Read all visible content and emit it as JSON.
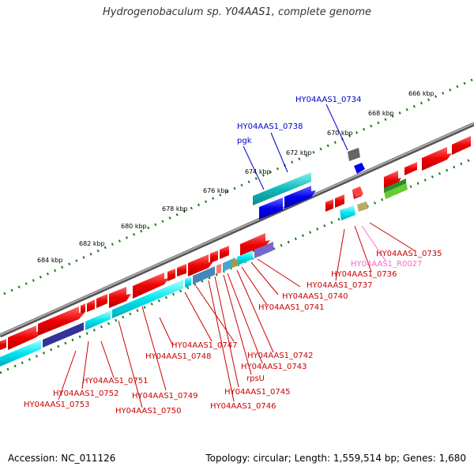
{
  "title": "Hydrogenobaculum sp. Y04AAS1, complete genome",
  "footer": {
    "accession": "Accession: NC_011126",
    "summary": "Topology: circular; Length: 1,559,514 bp; Genes: 1,680"
  },
  "scale_labels": [
    "666 kbp",
    "668 kbp",
    "670 kbp",
    "672 kbp",
    "674 kbp",
    "676 kbp",
    "678 kbp",
    "680 kbp",
    "682 kbp",
    "684 kbp"
  ],
  "upper_labels": [
    "HY04AAS1_0734",
    "HY04AAS1_0738",
    "pgk"
  ],
  "lower_labels": [
    "HY04AAS1_0735",
    "HY04AAS1_R0027",
    "HY04AAS1_0736",
    "HY04AAS1_0737",
    "HY04AAS1_0740",
    "HY04AAS1_0741",
    "HY04AAS1_0742",
    "HY04AAS1_0743",
    "rpsU",
    "HY04AAS1_0745",
    "HY04AAS1_0746",
    "HY04AAS1_0747",
    "HY04AAS1_0748",
    "HY04AAS1_0749",
    "HY04AAS1_0750",
    "HY04AAS1_0751",
    "HY04AAS1_0752",
    "HY04AAS1_0753"
  ],
  "colors": {
    "cds": "#ff0000",
    "rna": "#ff66cc",
    "upper_label": "#0000cc",
    "lower_label": "#cc0000",
    "backbone": "#888888",
    "ticks": "#1a7a1a"
  }
}
